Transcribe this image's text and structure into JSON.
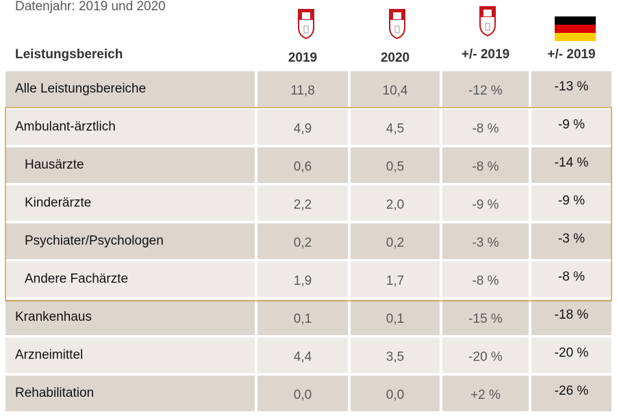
{
  "caption": "Datenjahr: 2019 und 2020",
  "table": {
    "header": [
      "Leistungsbereich",
      "2019",
      "2020",
      "+/- 2019",
      "+/- 2019"
    ],
    "rows": [
      {
        "label": "Alle Leistungsbereiche",
        "indent": false,
        "cells": [
          "11,8",
          "10,4",
          "-12 %",
          "-13 %"
        ]
      },
      {
        "label": "Ambulant-ärztlich",
        "indent": false,
        "cells": [
          "4,9",
          "4,5",
          "-8 %",
          "-9 %"
        ]
      },
      {
        "label": "Hausärzte",
        "indent": true,
        "cells": [
          "0,6",
          "0,5",
          "-8 %",
          "-14 %"
        ]
      },
      {
        "label": "Kinderärzte",
        "indent": true,
        "cells": [
          "2,2",
          "2,0",
          "-9 %",
          "-9 %"
        ]
      },
      {
        "label": "Psychiater/Psychologen",
        "indent": true,
        "cells": [
          "0,2",
          "0,2",
          "-3 %",
          "-3 %"
        ]
      },
      {
        "label": "Andere Fachärzte",
        "indent": true,
        "cells": [
          "1,9",
          "1,7",
          "-8 %",
          "-8 %"
        ]
      },
      {
        "label": "Krankenhaus",
        "indent": false,
        "cells": [
          "0,1",
          "0,1",
          "-15 %",
          "-18 %"
        ]
      },
      {
        "label": "Arzneimittel",
        "indent": false,
        "cells": [
          "4,4",
          "3,5",
          "-20 %",
          "-20 %"
        ]
      },
      {
        "label": "Rehabilitation",
        "indent": false,
        "cells": [
          "0,0",
          "0,0",
          "+2 %",
          "-26 %"
        ]
      }
    ]
  }
}
